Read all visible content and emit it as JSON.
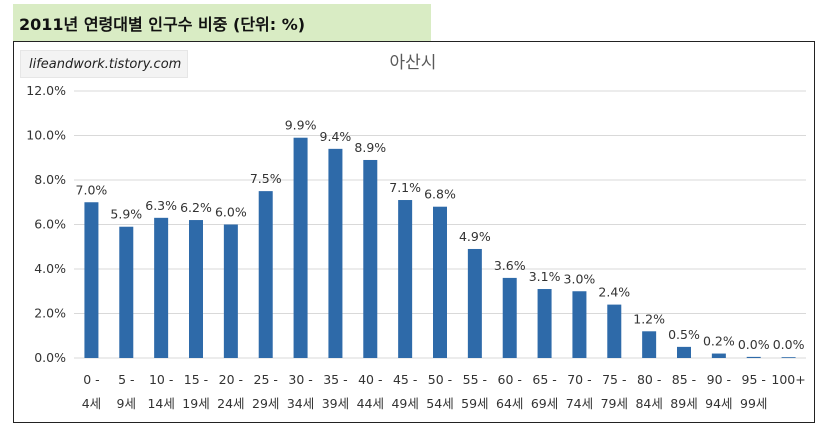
{
  "header": {
    "title": "2011년 연령대별 인구수 비중 (단위: %)"
  },
  "watermark": {
    "text": "lifeandwork.tistory.com"
  },
  "colors": {
    "bar": "#2e6aa9",
    "banner": "#d9ecc4",
    "grid": "#d9d9d9"
  },
  "chart_data": {
    "type": "bar",
    "title": "아산시",
    "xlabel": "",
    "ylabel": "",
    "ylim": [
      0,
      12
    ],
    "grid": true,
    "yticks": [
      "0.0%",
      "2.0%",
      "4.0%",
      "6.0%",
      "8.0%",
      "10.0%",
      "12.0%"
    ],
    "categories": [
      [
        "0 -",
        "4세"
      ],
      [
        "5 -",
        "9세"
      ],
      [
        "10 -",
        "14세"
      ],
      [
        "15 -",
        "19세"
      ],
      [
        "20 -",
        "24세"
      ],
      [
        "25 -",
        "29세"
      ],
      [
        "30 -",
        "34세"
      ],
      [
        "35 -",
        "39세"
      ],
      [
        "40 -",
        "44세"
      ],
      [
        "45 -",
        "49세"
      ],
      [
        "50 -",
        "54세"
      ],
      [
        "55 -",
        "59세"
      ],
      [
        "60 -",
        "64세"
      ],
      [
        "65 -",
        "69세"
      ],
      [
        "70 -",
        "74세"
      ],
      [
        "75 -",
        "79세"
      ],
      [
        "80 -",
        "84세"
      ],
      [
        "85 -",
        "89세"
      ],
      [
        "90 -",
        "94세"
      ],
      [
        "95 -",
        "99세"
      ],
      [
        "100+",
        ""
      ]
    ],
    "values": [
      7.0,
      5.9,
      6.3,
      6.2,
      6.0,
      7.5,
      9.9,
      9.4,
      8.9,
      7.1,
      6.8,
      4.9,
      3.6,
      3.1,
      3.0,
      2.4,
      1.2,
      0.5,
      0.2,
      0.05,
      0.02
    ],
    "data_labels": [
      "7.0%",
      "5.9%",
      "6.3%",
      "6.2%",
      "6.0%",
      "7.5%",
      "9.9%",
      "9.4%",
      "8.9%",
      "7.1%",
      "6.8%",
      "4.9%",
      "3.6%",
      "3.1%",
      "3.0%",
      "2.4%",
      "1.2%",
      "0.5%",
      "0.2%",
      "0.0%",
      "0.0%"
    ]
  }
}
